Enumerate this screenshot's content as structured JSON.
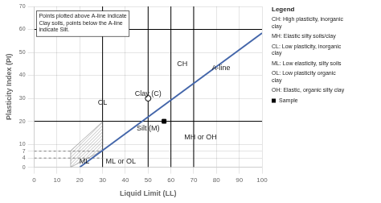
{
  "chart_data": {
    "type": "scatter",
    "xlabel": "Liquid Limit (LL)",
    "ylabel": "Plasticity Index (PI)",
    "xlim": [
      0,
      100
    ],
    "ylim": [
      0,
      70
    ],
    "xticks": [
      0,
      10,
      20,
      30,
      40,
      50,
      60,
      70,
      80,
      90,
      100
    ],
    "yticks": [
      0,
      4,
      7,
      10,
      20,
      30,
      40,
      50,
      60,
      70
    ],
    "grid": true,
    "vertical_lines": [
      30,
      50,
      60,
      70
    ],
    "horizontal_lines": [
      20,
      60
    ],
    "series": [
      {
        "type": "line",
        "x": [
          20,
          100
        ],
        "values": [
          0,
          58.4
        ],
        "color": "#4466aa",
        "line_style": "solid"
      },
      {
        "type": "line",
        "x": [
          0,
          30
        ],
        "values": [
          4,
          4
        ],
        "color": "#808080",
        "line_style": "dashed"
      },
      {
        "type": "line",
        "x": [
          0,
          30
        ],
        "values": [
          7,
          7
        ],
        "color": "#808080",
        "line_style": "dashed"
      },
      {
        "type": "hatch",
        "x": [
          16,
          30
        ],
        "lower": [
          0,
          7.3
        ],
        "upper": [
          7.2,
          19.8
        ],
        "color": "#808080"
      },
      {
        "type": "scatter",
        "x": [
          57
        ],
        "values": [
          20
        ],
        "color": "#000000",
        "marker": "square"
      },
      {
        "type": "scatter",
        "x": [
          50
        ],
        "values": [
          30
        ],
        "color": "#000000",
        "marker": "circle_open"
      }
    ],
    "annotations": [
      {
        "text": "CH",
        "x": 65,
        "y": 45
      },
      {
        "text": "CL",
        "x": 30,
        "y": 28
      },
      {
        "text": "Clay (C)",
        "x": 50,
        "y": 32
      },
      {
        "text": "Silt (M)",
        "x": 50,
        "y": 17
      },
      {
        "text": "ML",
        "x": 22,
        "y": 2.5
      },
      {
        "text": "ML or OL",
        "x": 38,
        "y": 2.5
      },
      {
        "text": "MH or OH",
        "x": 73,
        "y": 13
      },
      {
        "text": "A-line",
        "x": 82,
        "y": 43
      }
    ],
    "note": {
      "text": "Points plotted above A-line indicate\nClay soils, points below the A-line\nindicate Silt.",
      "x": 1,
      "y": 68
    },
    "legend": "right",
    "legend_title": "Legend",
    "legend_items": [
      {
        "label": "CH: High plasticity, inorganic\nclay",
        "marker": null
      },
      {
        "label": "MH: Elastic silty soils/clay",
        "marker": null
      },
      {
        "label": "CL: Low plasticity, inorganic\nclay",
        "marker": null
      },
      {
        "label": "ML: Low elasticity, silty soils",
        "marker": null
      },
      {
        "label": "OL: Low plasticity organic\nclay",
        "marker": null
      },
      {
        "label": "OH: Elastic, organic silty clay",
        "marker": null
      },
      {
        "label": "Sample",
        "marker": "square",
        "color": "#000000"
      }
    ]
  }
}
